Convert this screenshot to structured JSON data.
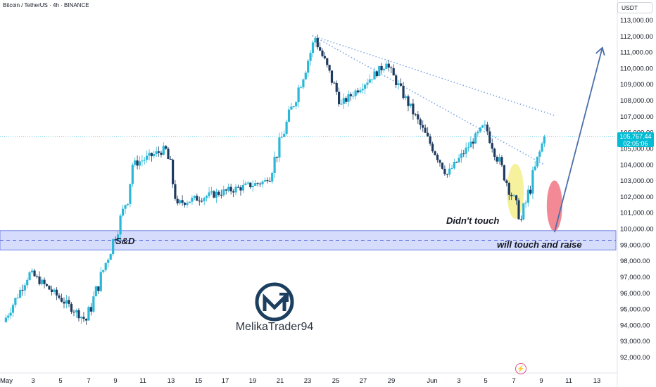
{
  "header": {
    "title": "Bitcoin / TetherUS · 4h · BINANCE",
    "currency": "USDT"
  },
  "price_tag": {
    "price": "105,767.44",
    "countdown": "02:05:06"
  },
  "annotations": {
    "sd_zone": "S&D",
    "didnt_touch": "Didn't touch",
    "will_touch": "will touch and raise"
  },
  "branding": {
    "name": "MelikaTrader94"
  },
  "colors": {
    "up": "#26a69a",
    "up_blue": "#2ab7d8",
    "down": "#1e3a5f",
    "zone_fill": "#d6dcfc",
    "zone_border": "#5b6fe0",
    "trendline": "#7ea6e8",
    "arrow": "#4a6fa8",
    "yellow_ellipse": "#f5ef8c",
    "red_ellipse": "#f06c7a",
    "price_line": "#1eaecb"
  },
  "chart_data": {
    "type": "candlestick",
    "y_axis": {
      "ylim": [
        91500,
        113600
      ],
      "ticks": [
        "113,000.00",
        "112,000.00",
        "111,000.00",
        "110,000.00",
        "109,000.00",
        "108,000.00",
        "107,000.00",
        "106,000.00",
        "105,000.00",
        "104,000.00",
        "103,000.00",
        "102,000.00",
        "101,000.00",
        "100,000.00",
        "99,000.00",
        "98,000.00",
        "97,000.00",
        "96,000.00",
        "95,000.00",
        "94,000.00",
        "93,000.00",
        "92,000.00"
      ]
    },
    "x_axis": {
      "tick_labels": [
        "May",
        "3",
        "5",
        "7",
        "9",
        "11",
        "13",
        "15",
        "17",
        "19",
        "21",
        "23",
        "25",
        "27",
        "29",
        "Jun",
        "3",
        "5",
        "7",
        "9",
        "11",
        "13"
      ]
    },
    "last_price": 105767.44,
    "sd_zone": {
      "top": 99900,
      "bottom": 98700,
      "midline": 99300
    },
    "key_points": [
      {
        "label": "start",
        "day": 0,
        "price": 94200
      },
      {
        "label": "early-may high",
        "day": 1.8,
        "price": 97300
      },
      {
        "label": "may-5 low",
        "day": 5.7,
        "price": 94300
      },
      {
        "label": "breakout",
        "day": 8.4,
        "price": 101500
      },
      {
        "label": "may-9 high",
        "day": 8.9,
        "price": 104000
      },
      {
        "label": "range high",
        "day": 11.2,
        "price": 105000
      },
      {
        "label": "may-12 low",
        "day": 12.0,
        "price": 101600
      },
      {
        "label": "range low",
        "day": 18.2,
        "price": 103000
      },
      {
        "label": "all-time high",
        "day": 21.5,
        "price": 111900
      },
      {
        "label": "may-23 low",
        "day": 23.3,
        "price": 107800
      },
      {
        "label": "may-27 high",
        "day": 26.4,
        "price": 110300
      },
      {
        "label": "may-31 low",
        "day": 30.6,
        "price": 103400
      },
      {
        "label": "jun-2 high",
        "day": 33.2,
        "price": 106500
      },
      {
        "label": "jun-5 low",
        "day": 35.7,
        "price": 100600
      },
      {
        "label": "last",
        "day": 37.3,
        "price": 105767
      }
    ]
  }
}
